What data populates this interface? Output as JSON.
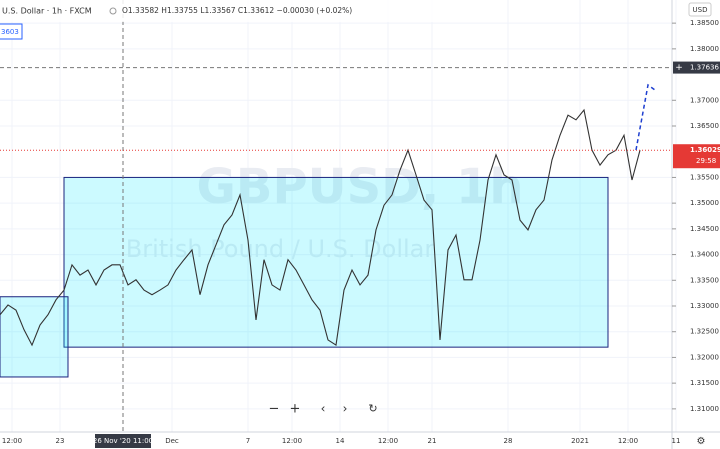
{
  "chart_data": {
    "type": "line",
    "symbol": "U.S. Dollar · 1h · FXCM",
    "ohlc": "O1.33582 H1.33755 L1.33567 C1.33612 −0.00030 (+0.02%)",
    "watermark": "GBPUSD, 1h",
    "watermark_sub": "British Pound / U.S. Dollar",
    "side_badge": "3603",
    "currency": "USD",
    "series": [
      {
        "name": "GBPUSD",
        "color": "#333333",
        "values": [
          1.3283,
          1.3302,
          1.3292,
          1.3254,
          1.3224,
          1.3263,
          1.3283,
          1.3312,
          1.3331,
          1.338,
          1.336,
          1.337,
          1.3341,
          1.337,
          1.338,
          1.338,
          1.3341,
          1.3351,
          1.3331,
          1.3322,
          1.3331,
          1.3341,
          1.337,
          1.339,
          1.3409,
          1.3322,
          1.338,
          1.3419,
          1.3458,
          1.3477,
          1.3516,
          1.3428,
          1.3273,
          1.339,
          1.3341,
          1.3331,
          1.339,
          1.337,
          1.3341,
          1.3312,
          1.3292,
          1.3234,
          1.3224,
          1.3331,
          1.337,
          1.3341,
          1.336,
          1.3448,
          1.3496,
          1.3516,
          1.3564,
          1.3603,
          1.3555,
          1.3506,
          1.3487,
          1.3234,
          1.3409,
          1.3438,
          1.3351,
          1.3351,
          1.3428,
          1.3545,
          1.3594,
          1.3555,
          1.3545,
          1.3467,
          1.3448,
          1.3487,
          1.3506,
          1.3584,
          1.3632,
          1.3671,
          1.3662,
          1.3681,
          1.3603,
          1.3574,
          1.3594,
          1.3603,
          1.3632,
          1.3545,
          1.3603
        ]
      }
    ],
    "boxes": [
      {
        "x": [
          8,
          76
        ],
        "y": [
          1.355,
          1.322
        ],
        "color": "#1a237e"
      },
      {
        "x": [
          0,
          8.5
        ],
        "y": [
          1.3318,
          1.3162
        ],
        "color": "#1a237e"
      }
    ],
    "crosshair": {
      "x": {
        "value": 15.375,
        "label": "26 Nov '20   11:00"
      },
      "y": {
        "value": 1.37636,
        "label": "1.37636"
      }
    },
    "last_price": {
      "value": 1.36029,
      "label": "1.36029",
      "countdown": "29:58",
      "color": "#e53935"
    },
    "xlim": [
      0,
      84
    ],
    "ylim": [
      1.3055,
      1.3895
    ],
    "xticks": [
      {
        "value": 1.5,
        "label": "12:00"
      },
      {
        "value": 7.5,
        "label": "23"
      },
      {
        "value": 21.5,
        "label": "Dec"
      },
      {
        "value": 31,
        "label": "7"
      },
      {
        "value": 36.5,
        "label": "12:00"
      },
      {
        "value": 42.5,
        "label": "14"
      },
      {
        "value": 48.5,
        "label": "12:00"
      },
      {
        "value": 54,
        "label": "21"
      },
      {
        "value": 63.5,
        "label": "28"
      },
      {
        "value": 72.5,
        "label": "2021"
      },
      {
        "value": 78.5,
        "label": "12:00"
      },
      {
        "value": 84.5,
        "label": "11"
      }
    ],
    "yticks": [
      {
        "value": 1.385,
        "label": "1.38500"
      },
      {
        "value": 1.38,
        "label": "1.38000"
      },
      {
        "value": 1.37,
        "label": "1.37000"
      },
      {
        "value": 1.365,
        "label": "1.36500"
      },
      {
        "value": 1.355,
        "label": "1.35500"
      },
      {
        "value": 1.35,
        "label": "1.35000"
      },
      {
        "value": 1.345,
        "label": "1.34500"
      },
      {
        "value": 1.34,
        "label": "1.34000"
      },
      {
        "value": 1.335,
        "label": "1.33500"
      },
      {
        "value": 1.33,
        "label": "1.33000"
      },
      {
        "value": 1.325,
        "label": "1.32500"
      },
      {
        "value": 1.32,
        "label": "1.32000"
      },
      {
        "value": 1.315,
        "label": "1.31500"
      },
      {
        "value": 1.31,
        "label": "1.31000"
      }
    ],
    "grid": true
  }
}
